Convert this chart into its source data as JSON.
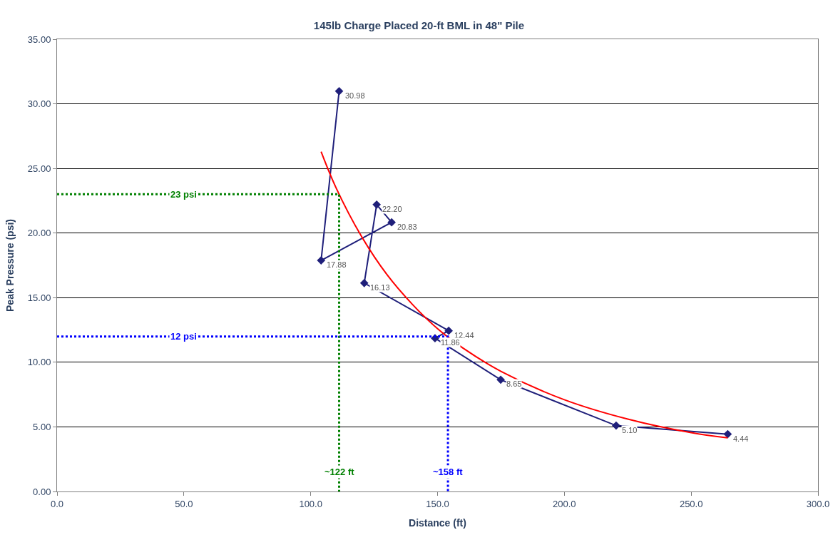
{
  "chart_data": {
    "type": "line",
    "title": "145lb Charge Placed 20-ft BML in 48\" Pile",
    "xlabel": "Distance (ft)",
    "ylabel": "Peak Pressure (psi)",
    "xlim": [
      0,
      300
    ],
    "xticks": [
      {
        "value": 0,
        "label": "0.0"
      },
      {
        "value": 50,
        "label": "50.0"
      },
      {
        "value": 100,
        "label": "100.0"
      },
      {
        "value": 150,
        "label": "150.0"
      },
      {
        "value": 200,
        "label": "200.0"
      },
      {
        "value": 250,
        "label": "250.0"
      },
      {
        "value": 300,
        "label": "300.0"
      }
    ],
    "ylim": [
      0,
      35
    ],
    "yticks": [
      {
        "value": 0,
        "label": "0.00"
      },
      {
        "value": 5,
        "label": "5.00"
      },
      {
        "value": 10,
        "label": "10.00"
      },
      {
        "value": 15,
        "label": "15.00"
      },
      {
        "value": 20,
        "label": "20.00"
      },
      {
        "value": 25,
        "label": "25.00"
      },
      {
        "value": 30,
        "label": "30.00"
      },
      {
        "value": 35,
        "label": "35.00"
      }
    ],
    "grid": "y",
    "series": [
      {
        "type": "line",
        "color": "#1f1f7a",
        "marker": "diamond",
        "line_style": "solid",
        "x": [
          111.2,
          104.1,
          131.9,
          126,
          121.1,
          154.4,
          149,
          174.9,
          220.4,
          264.4
        ],
        "values": [
          30.98,
          17.88,
          20.83,
          22.2,
          16.13,
          12.44,
          11.86,
          8.65,
          5.1,
          4.44
        ],
        "value_labels": [
          "30.98",
          "17.88",
          "20.83",
          "22.20",
          "16.13",
          "12.44",
          "11.86",
          "8.65",
          "5.10",
          "4.44"
        ]
      },
      {
        "type": "line",
        "color": "#ff0000",
        "marker": "none",
        "line_style": "solid",
        "x": [
          104.1,
          110,
          120,
          130,
          140,
          150,
          160,
          175,
          200,
          225,
          250,
          264.4
        ],
        "values": [
          26.3,
          23.5,
          19.75,
          16.8,
          14.5,
          12.6,
          11.1,
          9.3,
          7.1,
          5.6,
          4.55,
          4.15
        ]
      },
      {
        "type": "line",
        "color": "#008000",
        "marker": "none",
        "line_style": "dotted",
        "x": [
          0,
          111.2,
          111.2
        ],
        "values": [
          23,
          23,
          0
        ]
      },
      {
        "type": "line",
        "color": "#0000ff",
        "marker": "none",
        "line_style": "dotted",
        "x": [
          0,
          154.1,
          154.1
        ],
        "values": [
          12,
          12,
          0
        ]
      }
    ],
    "annotations": [
      {
        "text": "23 psi",
        "x": 50,
        "y": 23
      },
      {
        "text": "~122 ft",
        "x": 111.2,
        "y": 1.5
      },
      {
        "text": "12 psi",
        "x": 50,
        "y": 12
      },
      {
        "text": "~158 ft",
        "x": 154.1,
        "y": 1.5
      }
    ]
  }
}
